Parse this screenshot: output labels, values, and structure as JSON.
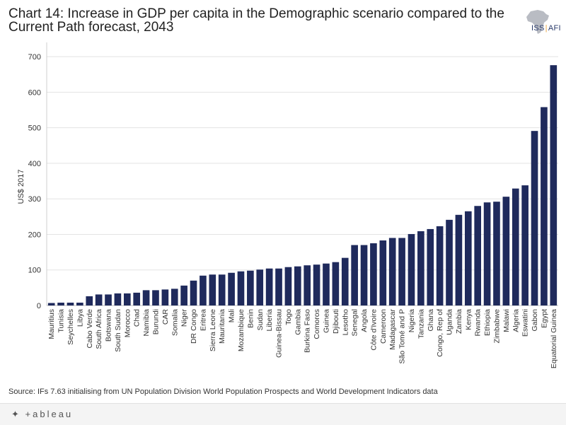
{
  "title": "Chart 14: Increase in GDP per capita in the Demographic scenario compared to the Current Path forecast, 2043",
  "logo": {
    "text_main": "ISS",
    "text_sep": "|",
    "text_suffix": "AFI"
  },
  "source": "Source: IFs 7.63 initialising from UN Population Division World Population Prospects and World Development Indicators data",
  "footer": {
    "brand": "+ableau",
    "brand_icon": "tableau-plus-icon"
  },
  "colors": {
    "bar": "#1f2a5c",
    "grid": "#e3e3e3",
    "logo_map": "#b9bcc3"
  },
  "chart_data": {
    "type": "bar",
    "title": "",
    "xlabel": "",
    "ylabel": "US$ 2017",
    "ylim": [
      0,
      740
    ],
    "yticks": [
      0,
      100,
      200,
      300,
      400,
      500,
      600,
      700
    ],
    "grid": true,
    "categories": [
      "Mauritius",
      "Tunisia",
      "Seychelles",
      "Libya",
      "Cabo Verde",
      "South Africa",
      "Botswana",
      "South Sudan",
      "Morocco",
      "Chad",
      "Namibia",
      "Burundi",
      "CAR",
      "Somalia",
      "Niger",
      "DR Congo",
      "Eritrea",
      "Sierra Leone",
      "Mauritania",
      "Mali",
      "Mozambique",
      "Benin",
      "Sudan",
      "Liberia",
      "Guinea-Bissau",
      "Togo",
      "Gambia",
      "Burkina Faso",
      "Comoros",
      "Guinea",
      "Djibouti",
      "Lesotho",
      "Senegal",
      "Angola",
      "Côte d'Ivoire",
      "Cameroon",
      "Madagascar",
      "São Tomé and P",
      "Nigeria",
      "Tanzania",
      "Ghana",
      "Congo, Rep of",
      "Uganda",
      "Zambia",
      "Kenya",
      "Rwanda",
      "Ethiopia",
      "Zimbabwe",
      "Malawi",
      "Algeria",
      "Eswatini",
      "Gabon",
      "Egypt",
      "Equatorial Guinea"
    ],
    "values": [
      7,
      8,
      8,
      8,
      26,
      31,
      31,
      34,
      34,
      36,
      43,
      43,
      45,
      47,
      56,
      70,
      84,
      87,
      87,
      92,
      96,
      98,
      101,
      104,
      104,
      108,
      110,
      113,
      115,
      118,
      122,
      134,
      170,
      170,
      175,
      183,
      190,
      190,
      201,
      209,
      215,
      223,
      241,
      255,
      265,
      280,
      290,
      292,
      306,
      329,
      338,
      491,
      558,
      676
    ]
  }
}
